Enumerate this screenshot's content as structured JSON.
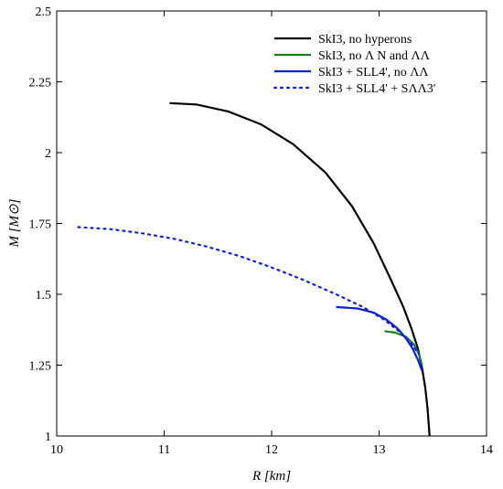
{
  "chart_data": {
    "type": "line",
    "title": "",
    "xlabel": "R [km]",
    "ylabel": "M [M⊙]",
    "xlim": [
      10,
      14
    ],
    "ylim": [
      1,
      2.5
    ],
    "x_ticks": [
      10,
      11,
      12,
      13,
      14
    ],
    "x_tick_labels": [
      "10",
      "11",
      "12",
      "13",
      "14"
    ],
    "y_ticks": [
      1,
      1.25,
      1.5,
      1.75,
      2,
      2.25,
      2.5
    ],
    "y_tick_labels": [
      "1",
      "1.25",
      "1.5",
      "1.75",
      "2",
      "2.25",
      "2.5"
    ],
    "grid": false,
    "legend_position": "top-right",
    "series": [
      {
        "name": "SkI3, no hyperons",
        "color": "#000000",
        "style": "solid",
        "x": [
          11.05,
          11.3,
          11.6,
          11.9,
          12.2,
          12.5,
          12.75,
          12.95,
          13.1,
          13.22,
          13.3,
          13.36,
          13.4,
          13.43,
          13.45,
          13.46,
          13.47
        ],
        "y": [
          2.175,
          2.17,
          2.145,
          2.1,
          2.03,
          1.93,
          1.81,
          1.68,
          1.56,
          1.46,
          1.38,
          1.31,
          1.24,
          1.17,
          1.1,
          1.05,
          1.0
        ]
      },
      {
        "name": "SkI3, no Λ N and ΛΛ",
        "color": "#1a7f1a",
        "style": "solid",
        "x": [
          13.05,
          13.15,
          13.25,
          13.32,
          13.37,
          13.4
        ],
        "y": [
          1.37,
          1.365,
          1.35,
          1.325,
          1.29,
          1.25
        ]
      },
      {
        "name": "SkI3 + SLL4', no ΛΛ",
        "color": "#0a1fe0",
        "style": "solid",
        "x": [
          12.6,
          12.8,
          12.95,
          13.07,
          13.17,
          13.25,
          13.31,
          13.36,
          13.4
        ],
        "y": [
          1.455,
          1.45,
          1.435,
          1.41,
          1.38,
          1.345,
          1.31,
          1.27,
          1.23
        ]
      },
      {
        "name": "SkI3 + SLL4' + SΛΛ3'",
        "color": "#0a1fe0",
        "style": "dotted",
        "x": [
          10.2,
          10.5,
          10.8,
          11.1,
          11.4,
          11.7,
          12.0,
          12.3,
          12.6,
          12.85,
          13.05,
          13.2,
          13.3,
          13.37
        ],
        "y": [
          1.737,
          1.73,
          1.715,
          1.695,
          1.668,
          1.635,
          1.595,
          1.55,
          1.5,
          1.455,
          1.41,
          1.365,
          1.325,
          1.29
        ]
      }
    ]
  }
}
